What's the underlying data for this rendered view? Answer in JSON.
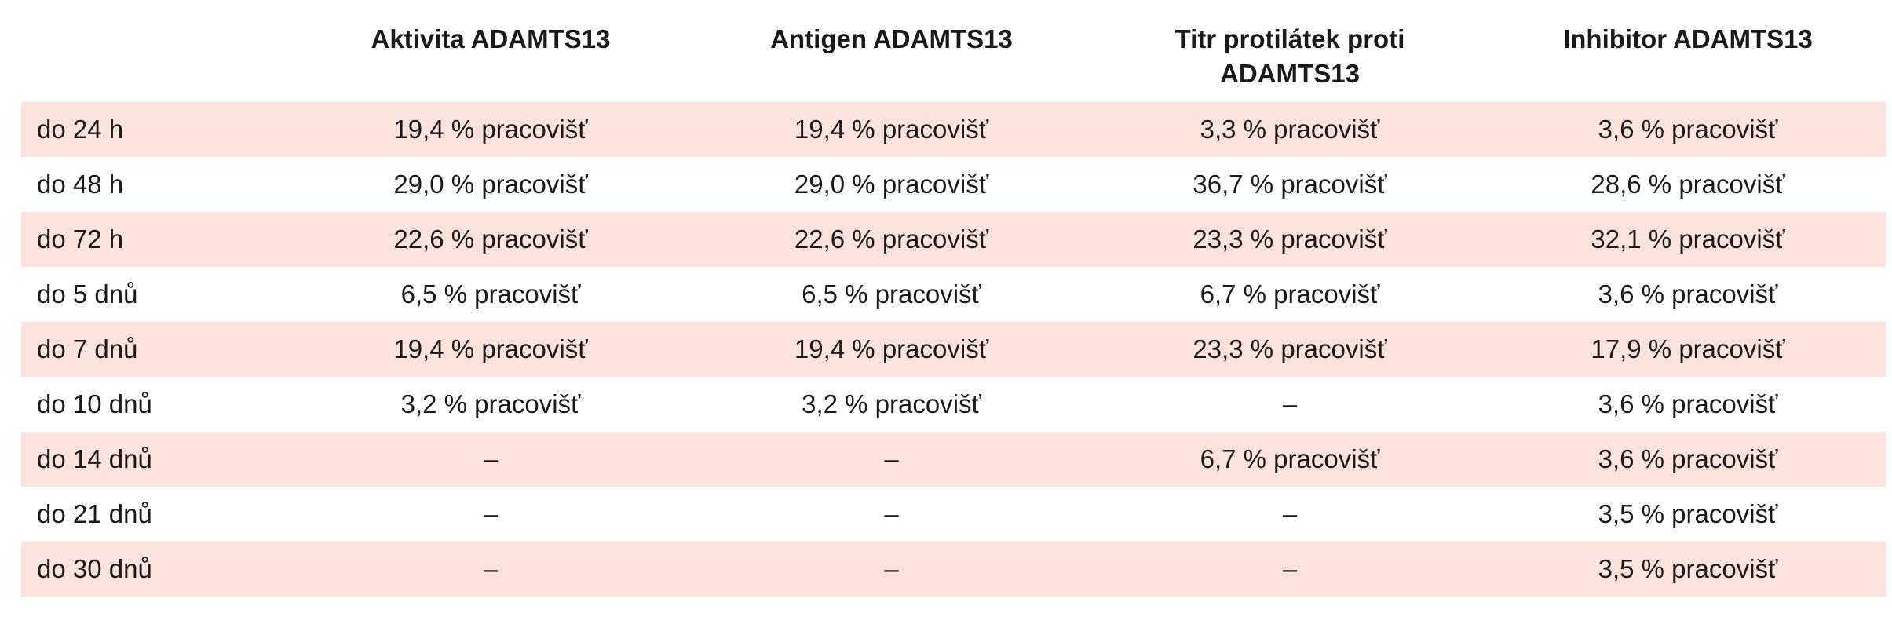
{
  "table": {
    "headers": [
      "",
      "Aktivita ADAMTS13",
      "Antigen ADAMTS13",
      "Titr protilátek proti ADAMTS13",
      "Inhibitor ADAMTS13"
    ],
    "rows": [
      {
        "label": "do 24 h",
        "cells": [
          "19,4 % pracovišť",
          "19,4 % pracovišť",
          "3,3 % pracovišť",
          "3,6 % pracovišť"
        ]
      },
      {
        "label": "do 48 h",
        "cells": [
          "29,0 % pracovišť",
          "29,0 % pracovišť",
          "36,7 % pracovišť",
          "28,6 % pracovišť"
        ]
      },
      {
        "label": "do 72 h",
        "cells": [
          "22,6 % pracovišť",
          "22,6 % pracovišť",
          "23,3 % pracovišť",
          "32,1 % pracovišť"
        ]
      },
      {
        "label": "do 5 dnů",
        "cells": [
          "6,5 % pracovišť",
          "6,5 % pracovišť",
          "6,7 % pracovišť",
          "3,6 % pracovišť"
        ]
      },
      {
        "label": "do 7 dnů",
        "cells": [
          "19,4 % pracovišť",
          "19,4 % pracovišť",
          "23,3 % pracovišť",
          "17,9 % pracovišť"
        ]
      },
      {
        "label": "do 10 dnů",
        "cells": [
          "3,2 % pracovišť",
          "3,2 % pracovišť",
          "–",
          "3,6 % pracovišť"
        ]
      },
      {
        "label": "do 14 dnů",
        "cells": [
          "–",
          "–",
          "6,7 % pracovišť",
          "3,6 % pracovišť"
        ]
      },
      {
        "label": "do 21 dnů",
        "cells": [
          "–",
          "–",
          "–",
          "3,5 % pracovišť"
        ]
      },
      {
        "label": "do 30 dnů",
        "cells": [
          "–",
          "–",
          "–",
          "3,5 % pracovišť"
        ]
      }
    ],
    "shaded_row_color": "#fbe3db"
  }
}
